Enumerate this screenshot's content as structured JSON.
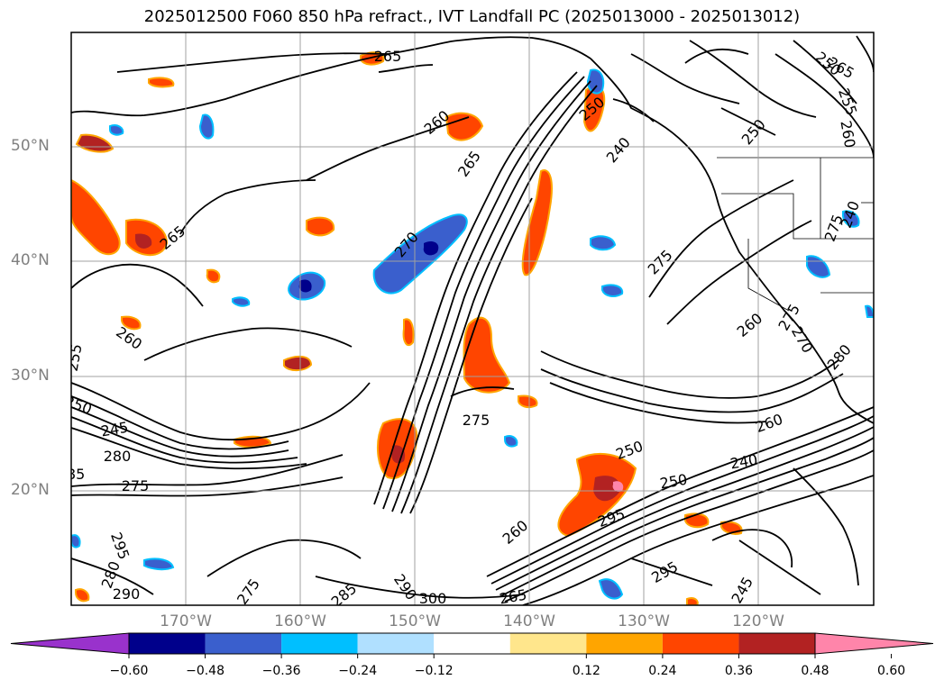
{
  "title": "2025012500 F060 850 hPa refract., IVT Landfall PC (2025013000 - 2025013012)",
  "lat_labels": [
    "50°N",
    "40°N",
    "30°N",
    "20°N"
  ],
  "lon_labels": [
    "170°W",
    "160°W",
    "150°W",
    "140°W",
    "130°W",
    "120°W"
  ],
  "contour_labels": [
    "265",
    "260",
    "265",
    "265",
    "250",
    "270",
    "275",
    "255",
    "260",
    "250",
    "245",
    "280",
    "275",
    "285",
    "290",
    "295",
    "280",
    "275",
    "285",
    "290",
    "300",
    "265",
    "260",
    "250",
    "240",
    "275",
    "295",
    "295",
    "245",
    "250",
    "240",
    "260",
    "265",
    "250",
    "255",
    "260",
    "250",
    "275",
    "240",
    "275",
    "260",
    "280",
    "270"
  ],
  "colorbar": {
    "ticks": [
      "−0.60",
      "−0.48",
      "−0.36",
      "−0.24",
      "−0.12",
      "0.12",
      "0.24",
      "0.36",
      "0.48",
      "0.60"
    ],
    "colors": [
      "#9932cc",
      "#00008b",
      "#3a5fcd",
      "#00bfff",
      "#b0e0ff",
      "#ffffff",
      "#ffe68c",
      "#ffa500",
      "#ff4500",
      "#b22222",
      "#ff85aa"
    ]
  },
  "colors": {
    "contour": "#000000",
    "grid": "#a0a0a0",
    "label": "#808080"
  }
}
